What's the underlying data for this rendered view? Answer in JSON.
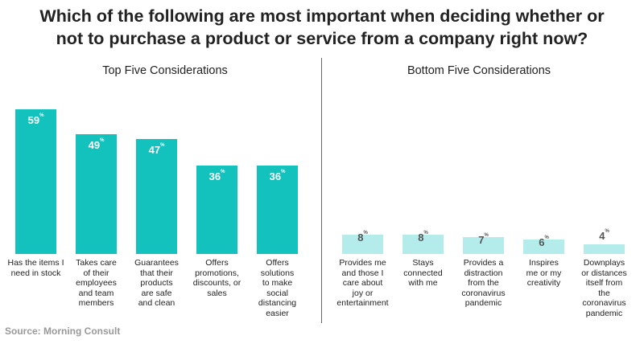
{
  "title_lines": [
    "Which of the following are most important when deciding whether or",
    "not to purchase a product or service from a company right now?"
  ],
  "source": "Source: Morning Consult",
  "colors": {
    "top_bar": "#13c1bd",
    "bottom_bar": "#b4eceb",
    "top_label": "#ffffff",
    "bottom_label": "#555555"
  },
  "chart_data": [
    {
      "type": "bar",
      "title": "Top Five Considerations",
      "unit": "%",
      "categories": [
        "Has the items I need in stock",
        "Takes care of their employees and team members",
        "Guarantees that their products are safe and clean",
        "Offers promotions, discounts, or sales",
        "Offers solutions to make social distancing easier"
      ],
      "category_lines": [
        [
          "Has the items I",
          "need in stock"
        ],
        [
          "Takes care",
          "of their",
          "employees",
          "and team",
          "members"
        ],
        [
          "Guarantees",
          "that their",
          "products",
          "are safe",
          "and clean"
        ],
        [
          "Offers",
          "promotions,",
          "discounts, or",
          "sales"
        ],
        [
          "Offers",
          "solutions",
          "to make",
          "social",
          "distancing",
          "easier"
        ]
      ],
      "values": [
        59,
        49,
        47,
        36,
        36
      ],
      "ylim": [
        0,
        59
      ]
    },
    {
      "type": "bar",
      "title": "Bottom Five Considerations",
      "unit": "%",
      "categories": [
        "Provides me and those I care about joy or entertainment",
        "Stays connected with me",
        "Provides a distraction from the coronavirus pandemic",
        "Inspires me or my creativity",
        "Downplays or distances itself from the coronavirus pandemic"
      ],
      "category_lines": [
        [
          "Provides me",
          "and those I",
          "care about",
          "joy or",
          "entertainment"
        ],
        [
          "Stays",
          "connected",
          "with me"
        ],
        [
          "Provides a",
          "distraction",
          "from the",
          "coronavirus",
          "pandemic"
        ],
        [
          "Inspires",
          "me or my",
          "creativity"
        ],
        [
          "Downplays",
          "or distances",
          "itself from",
          "the",
          "coronavirus",
          "pandemic"
        ]
      ],
      "values": [
        8,
        8,
        7,
        6,
        4
      ],
      "ylim": [
        0,
        59
      ]
    }
  ]
}
